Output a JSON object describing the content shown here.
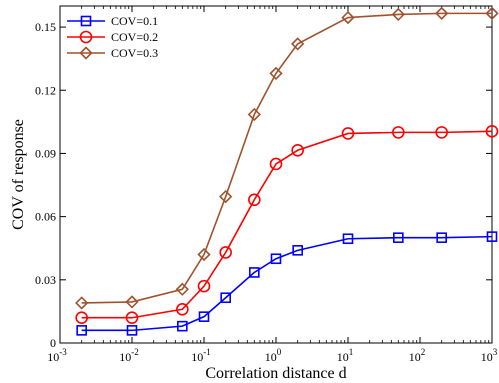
{
  "chart_data": {
    "type": "line",
    "xscale": "log",
    "yscale": "linear",
    "xlim": [
      0.001,
      1000
    ],
    "ylim": [
      0,
      0.16
    ],
    "xlabel": "Correlation distance d",
    "ylabel": "COV of response",
    "x_tick_values": [
      0.001,
      0.01,
      0.1,
      1,
      10,
      100,
      1000
    ],
    "x_tick_labels": [
      {
        "base": "10",
        "exp": "-3"
      },
      {
        "base": "10",
        "exp": "-2"
      },
      {
        "base": "10",
        "exp": "-1"
      },
      {
        "base": "10",
        "exp": "0"
      },
      {
        "base": "10",
        "exp": "1"
      },
      {
        "base": "10",
        "exp": "2"
      },
      {
        "base": "10",
        "exp": "3"
      }
    ],
    "y_tick_values": [
      0,
      0.03,
      0.06,
      0.09,
      0.12,
      0.15
    ],
    "y_tick_labels": [
      "0",
      "0.03",
      "0.06",
      "0.09",
      "0.12",
      "0.15"
    ],
    "grid": false,
    "legend_position": "top-left",
    "x": [
      0.002,
      0.01,
      0.05,
      0.1,
      0.2,
      0.5,
      1,
      2,
      10,
      50,
      200,
      1000
    ],
    "series": [
      {
        "name": "COV=0.1",
        "color": "#0000ff",
        "marker": "square",
        "values": [
          0.006,
          0.006,
          0.008,
          0.0125,
          0.0215,
          0.0335,
          0.04,
          0.044,
          0.0495,
          0.05,
          0.05,
          0.0505
        ]
      },
      {
        "name": "COV=0.2",
        "color": "#ff0000",
        "marker": "circle",
        "values": [
          0.012,
          0.012,
          0.016,
          0.027,
          0.043,
          0.068,
          0.085,
          0.0915,
          0.0995,
          0.1,
          0.1,
          0.1005
        ]
      },
      {
        "name": "COV=0.3",
        "color": "#a0522d",
        "marker": "diamond",
        "values": [
          0.019,
          0.0195,
          0.0255,
          0.042,
          0.0695,
          0.1085,
          0.128,
          0.142,
          0.1545,
          0.156,
          0.1565,
          0.1565
        ]
      }
    ]
  }
}
